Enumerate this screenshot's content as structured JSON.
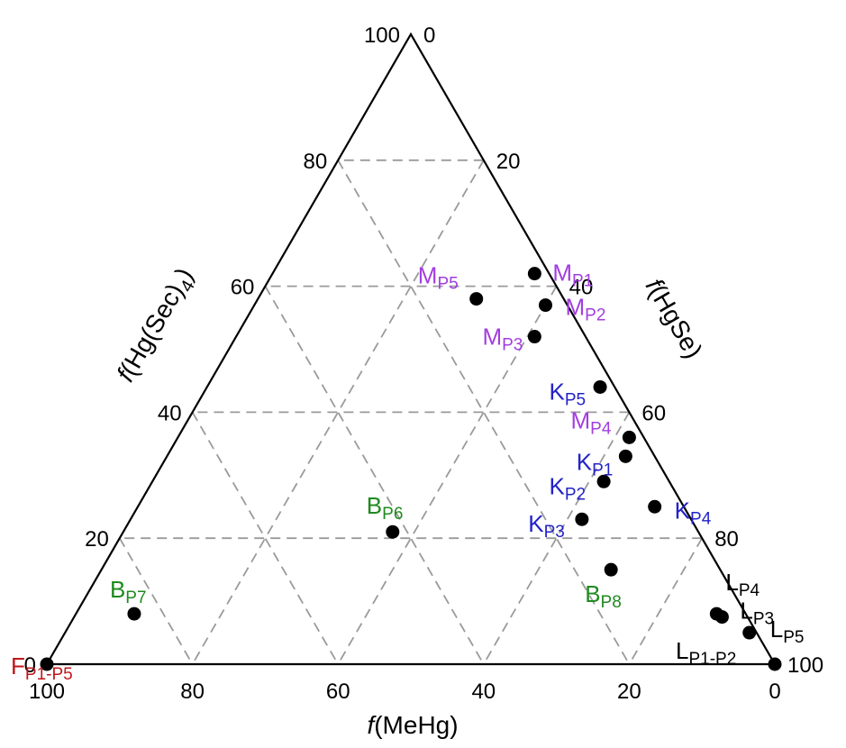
{
  "chart_data": {
    "type": "scatter",
    "subtype": "ternary",
    "title": "",
    "axes": {
      "left": {
        "label_prefix": "f",
        "label_rest": "(Hg(Sec)",
        "label_sub": "4",
        "label_close": ")",
        "ticks": [
          "0",
          "20",
          "40",
          "60",
          "80",
          "100"
        ]
      },
      "right": {
        "label_prefix": "f",
        "label_rest": "(HgSe)",
        "ticks": [
          "0",
          "20",
          "40",
          "60",
          "80",
          "100"
        ]
      },
      "bottom": {
        "label_prefix": "f",
        "label_rest": "(MeHg)",
        "ticks": [
          "100",
          "80",
          "60",
          "40",
          "20",
          "0"
        ]
      }
    },
    "range": [
      0,
      100
    ],
    "grid": {
      "visible": true,
      "step": 20,
      "style": "dashed",
      "color": "#9a9a9a"
    },
    "points": [
      {
        "base": "M",
        "sub": "P1",
        "color": "#a23ee0",
        "hgsec4": 62,
        "hgse": 36,
        "mehg": 2
      },
      {
        "base": "M",
        "sub": "P2",
        "color": "#a23ee0",
        "hgsec4": 57,
        "hgse": 40,
        "mehg": 3
      },
      {
        "base": "M",
        "sub": "P5",
        "color": "#a23ee0",
        "hgsec4": 58,
        "hgse": 30,
        "mehg": 12
      },
      {
        "base": "M",
        "sub": "P3",
        "color": "#a23ee0",
        "hgsec4": 52,
        "hgse": 41,
        "mehg": 7
      },
      {
        "base": "K",
        "sub": "P5",
        "color": "#2323c8",
        "hgsec4": 44,
        "hgse": 54,
        "mehg": 2
      },
      {
        "base": "M",
        "sub": "P4",
        "color": "#a23ee0",
        "hgsec4": 36,
        "hgse": 62,
        "mehg": 2
      },
      {
        "base": "K",
        "sub": "P1",
        "color": "#2323c8",
        "hgsec4": 33,
        "hgse": 63,
        "mehg": 4
      },
      {
        "base": "K",
        "sub": "P2",
        "color": "#2323c8",
        "hgsec4": 29,
        "hgse": 62,
        "mehg": 9
      },
      {
        "base": "K",
        "sub": "P4",
        "color": "#2323c8",
        "hgsec4": 25,
        "hgse": 71,
        "mehg": 4
      },
      {
        "base": "K",
        "sub": "P3",
        "color": "#2323c8",
        "hgsec4": 23,
        "hgse": 62,
        "mehg": 15
      },
      {
        "base": "B",
        "sub": "P6",
        "color": "#1f8a1f",
        "hgsec4": 21,
        "hgse": 37,
        "mehg": 42
      },
      {
        "base": "B",
        "sub": "P8",
        "color": "#1f8a1f",
        "hgsec4": 15,
        "hgse": 70,
        "mehg": 15
      },
      {
        "base": "B",
        "sub": "P7",
        "color": "#1f8a1f",
        "hgsec4": 8,
        "hgse": 8,
        "mehg": 84
      },
      {
        "base": "L",
        "sub": "P4",
        "color": "#000000",
        "hgsec4": 8,
        "hgse": 88,
        "mehg": 4
      },
      {
        "base": "L",
        "sub": "P3",
        "color": "#000000",
        "hgsec4": 7.5,
        "hgse": 89,
        "mehg": 3.5
      },
      {
        "base": "L",
        "sub": "P5",
        "color": "#000000",
        "hgsec4": 5,
        "hgse": 94,
        "mehg": 1
      },
      {
        "base": "L",
        "sub": "P1-P2",
        "color": "#000000",
        "hgsec4": 0,
        "hgse": 100,
        "mehg": 0
      },
      {
        "base": "F",
        "sub": "P1-P5",
        "color": "#c0161a",
        "hgsec4": 0,
        "hgse": 0,
        "mehg": 100
      }
    ]
  }
}
